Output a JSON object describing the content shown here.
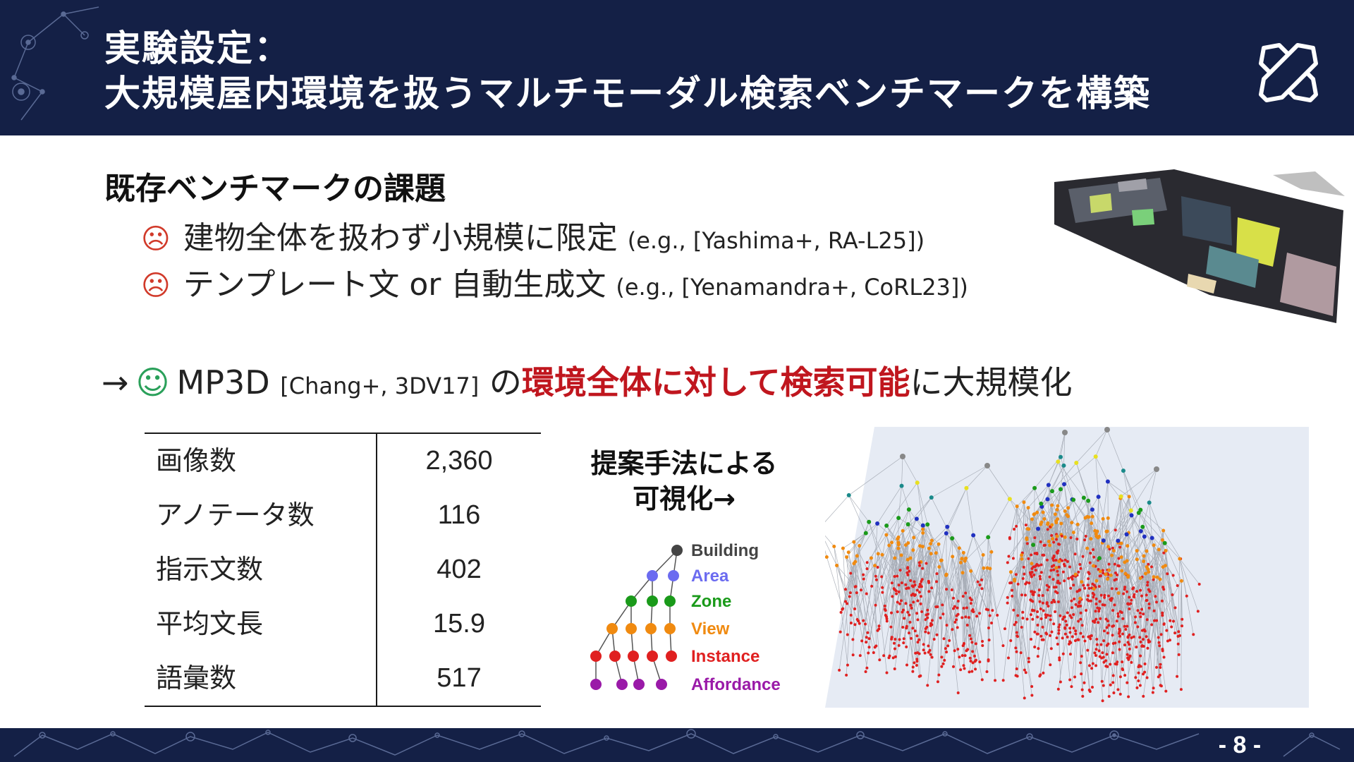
{
  "header": {
    "title_line1": "実験設定：",
    "title_line2": "大規模屋内環境を扱うマルチモーダル検索ベンチマークを構築"
  },
  "section": {
    "heading": "既存ベンチマークの課題",
    "issues": [
      {
        "icon": "frown-face",
        "text": "建物全体を扱わず小規模に限定",
        "citation": "(e.g., [Yashima+, RA-L25])"
      },
      {
        "icon": "frown-face",
        "text": "テンプレート文 or 自動生成文",
        "citation": "(e.g., [Yenamandra+, CoRL23])"
      }
    ]
  },
  "conclusion": {
    "arrow": "→",
    "icon": "smile-face",
    "dataset": "MP3D",
    "citation": "[Chang+, 3DV17]",
    "particle": "の",
    "emphasis": "環境全体に対して検索可能",
    "tail": "に大規模化"
  },
  "stats": [
    {
      "label": "画像数",
      "value": "2,360"
    },
    {
      "label": "アノテータ数",
      "value": "116"
    },
    {
      "label": "指示文数",
      "value": "402"
    },
    {
      "label": "平均文長",
      "value": "15.9"
    },
    {
      "label": "語彙数",
      "value": "517"
    }
  ],
  "visualization": {
    "caption_line1": "提案手法による",
    "caption_line2": "可視化→",
    "legend": [
      {
        "label": "Building",
        "color": "#444444"
      },
      {
        "label": "Area",
        "color": "#6b6bf0"
      },
      {
        "label": "Zone",
        "color": "#1a9a1a"
      },
      {
        "label": "View",
        "color": "#f08a10"
      },
      {
        "label": "Instance",
        "color": "#e02020"
      },
      {
        "label": "Affordance",
        "color": "#9a1aa8"
      }
    ]
  },
  "footer": {
    "page_number": "- 8 -"
  },
  "colors": {
    "navy": "#142046",
    "emphasis_red": "#c0161e",
    "frown_red": "#d13a2a",
    "smile_green": "#2aa05a"
  }
}
